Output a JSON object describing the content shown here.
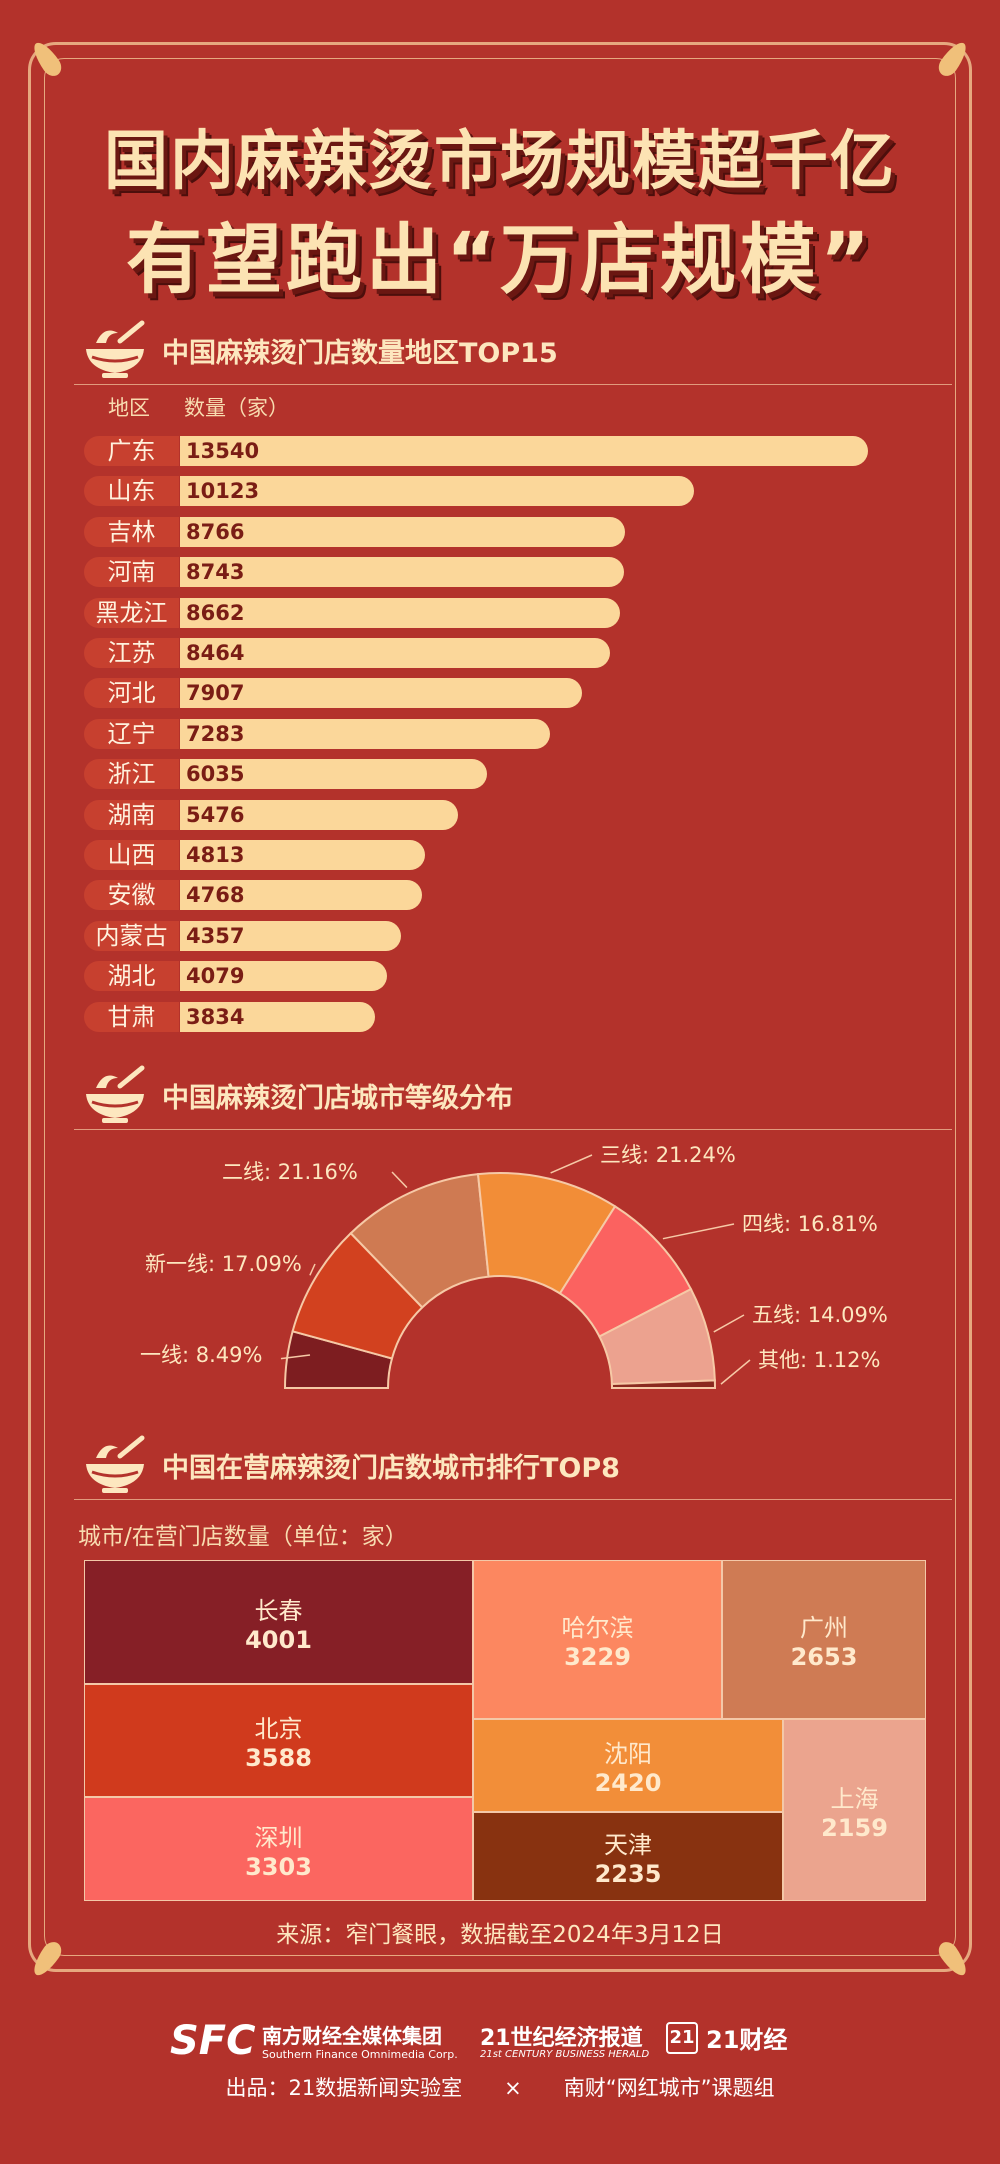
{
  "title": {
    "line1": "国内麻辣烫市场规模超千亿",
    "line2": "有望跑出“万店规模”"
  },
  "section1": {
    "title": "中国麻辣烫门店数量地区TOP15",
    "col_region": "地区",
    "col_count": "数量（家）"
  },
  "section2": {
    "title": "中国麻辣烫门店城市等级分布"
  },
  "section3": {
    "title": "中国在营麻辣烫门店数城市排行TOP8",
    "subtitle": "城市/在营门店数量（单位：家）"
  },
  "source": "来源：窄门餐眼，数据截至2024年3月12日",
  "footer": {
    "sfc": "SFC",
    "sfc_cn": "南方财经全媒体集团",
    "sfc_en": "Southern Finance Omnimedia Corp.",
    "herald_cn": "21世纪经济报道",
    "herald_en": "21st CENTURY BUSINESS HERALD",
    "cj21_badge": "21",
    "cj21": "21财经",
    "credit": "出品：21数据新闻实验室　　×　　南财“网红城市”课题组"
  },
  "colors": {
    "background": "#b3322b",
    "bar": "#fbd79a",
    "label_bg": "#c7402f",
    "accent": "#fce3b3"
  },
  "chart_data": [
    {
      "type": "bar",
      "orientation": "horizontal",
      "title": "中国麻辣烫门店数量地区TOP15",
      "xlabel": "数量（家）",
      "ylabel": "地区",
      "categories": [
        "广东",
        "山东",
        "吉林",
        "河南",
        "黑龙江",
        "江苏",
        "河北",
        "辽宁",
        "浙江",
        "湖南",
        "山西",
        "安徽",
        "内蒙古",
        "湖北",
        "甘肃"
      ],
      "values": [
        13540,
        10123,
        8766,
        8743,
        8662,
        8464,
        7907,
        7283,
        6035,
        5476,
        4813,
        4768,
        4357,
        4079,
        3834
      ]
    },
    {
      "type": "pie",
      "variant": "half-donut",
      "title": "中国麻辣烫门店城市等级分布",
      "slices": [
        {
          "label": "一线",
          "display": "一线: 8.49%",
          "value": 8.49,
          "color": "#7d1d20"
        },
        {
          "label": "新一线",
          "display": "新一线: 17.09%",
          "value": 17.09,
          "color": "#d2411f"
        },
        {
          "label": "二线",
          "display": "二线: 21.16%",
          "value": 21.16,
          "color": "#cf7a52"
        },
        {
          "label": "三线",
          "display": "三线: 21.24%",
          "value": 21.24,
          "color": "#f28d37"
        },
        {
          "label": "四线",
          "display": "四线: 16.81%",
          "value": 16.81,
          "color": "#fb6260"
        },
        {
          "label": "五线",
          "display": "五线: 14.09%",
          "value": 14.09,
          "color": "#eca28f"
        },
        {
          "label": "其他",
          "display": "其他: 1.12%",
          "value": 1.12,
          "color": "#8a2a1f"
        }
      ]
    },
    {
      "type": "treemap",
      "title": "中国在营麻辣烫门店数城市排行TOP8",
      "items": [
        {
          "name": "长春",
          "value": 4001,
          "color": "#861f26"
        },
        {
          "name": "北京",
          "value": 3588,
          "color": "#d03a1d"
        },
        {
          "name": "深圳",
          "value": 3303,
          "color": "#fb6660"
        },
        {
          "name": "哈尔滨",
          "value": 3229,
          "color": "#fc8760"
        },
        {
          "name": "广州",
          "value": 2653,
          "color": "#cf7b54"
        },
        {
          "name": "沈阳",
          "value": 2420,
          "color": "#f28e39"
        },
        {
          "name": "天津",
          "value": 2235,
          "color": "#883210"
        },
        {
          "name": "上海",
          "value": 2159,
          "color": "#eba48e"
        }
      ]
    }
  ]
}
